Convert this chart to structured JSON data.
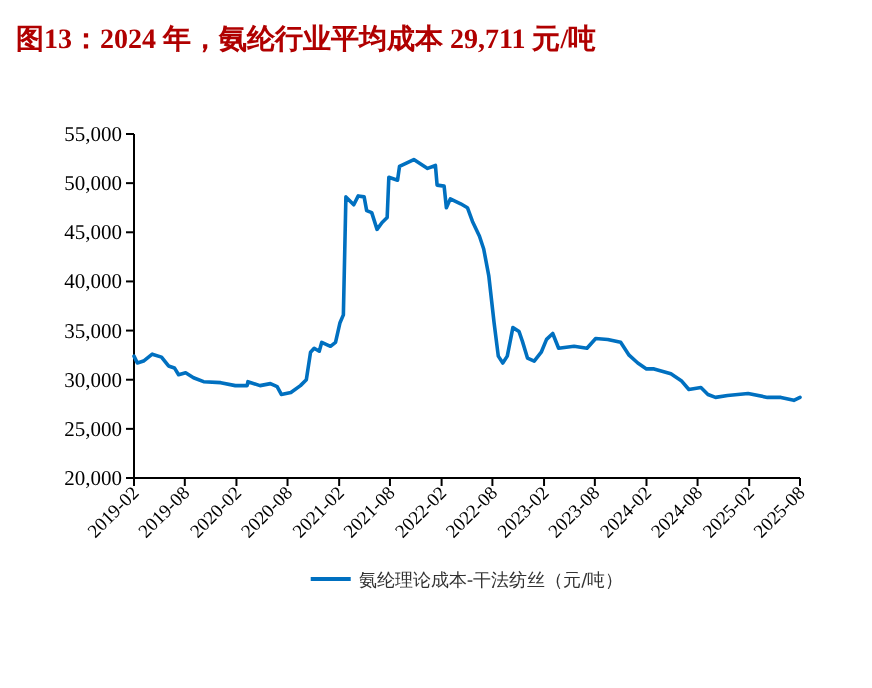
{
  "chart_data": {
    "type": "line",
    "title": "图13：2024 年，氨纶行业平均成本 29,711 元/吨",
    "xlim": [
      "2019-02-01",
      "2025-08-01"
    ],
    "xticks": [
      "2019-02",
      "2019-08",
      "2020-02",
      "2020-08",
      "2021-02",
      "2021-08",
      "2022-02",
      "2022-08",
      "2023-02",
      "2023-08",
      "2024-02",
      "2024-08",
      "2025-02",
      "2025-08"
    ],
    "ylim": [
      20000,
      55000
    ],
    "yticks": [
      {
        "value": 20000,
        "label": "20,000"
      },
      {
        "value": 25000,
        "label": "25,000"
      },
      {
        "value": 30000,
        "label": "30,000"
      },
      {
        "value": 35000,
        "label": "35,000"
      },
      {
        "value": 40000,
        "label": "40,000"
      },
      {
        "value": 45000,
        "label": "45,000"
      },
      {
        "value": 50000,
        "label": "50,000"
      },
      {
        "value": 55000,
        "label": "55,000"
      }
    ],
    "grid": false,
    "legend": "bottom",
    "marker": "none",
    "line_style": "solid",
    "series": [
      {
        "name": "氨纶理论成本-干法纺丝（元/吨）",
        "color": "#0070c0",
        "x": [
          "2019-02-01",
          "2019-02-13",
          "2019-03-07",
          "2019-04-07",
          "2019-05-10",
          "2019-06-04",
          "2019-06-25",
          "2019-07-10",
          "2019-08-04",
          "2019-09-01",
          "2019-10-07",
          "2019-12-07",
          "2020-01-28",
          "2020-03-10",
          "2020-03-13",
          "2020-04-25",
          "2020-06-01",
          "2020-06-25",
          "2020-07-10",
          "2020-08-13",
          "2020-09-16",
          "2020-10-07",
          "2020-10-22",
          "2020-11-04",
          "2020-11-22",
          "2020-12-01",
          "2021-01-01",
          "2021-01-19",
          "2021-02-04",
          "2021-02-16",
          "2021-02-25",
          "2021-03-25",
          "2021-04-10",
          "2021-05-01",
          "2021-05-10",
          "2021-05-28",
          "2021-06-16",
          "2021-07-04",
          "2021-07-22",
          "2021-07-28",
          "2021-08-28",
          "2021-09-04",
          "2021-10-25",
          "2021-12-13",
          "2022-01-10",
          "2022-01-16",
          "2022-02-10",
          "2022-02-18",
          "2022-03-04",
          "2022-04-10",
          "2022-05-04",
          "2022-05-22",
          "2022-06-16",
          "2022-07-01",
          "2022-07-19",
          "2022-08-07",
          "2022-08-22",
          "2022-09-07",
          "2022-09-23",
          "2022-10-13",
          "2022-11-04",
          "2022-11-16",
          "2022-12-04",
          "2022-12-28",
          "2023-01-22",
          "2023-02-10",
          "2023-03-04",
          "2023-03-25",
          "2023-05-19",
          "2023-07-04",
          "2023-08-04",
          "2023-09-16",
          "2023-11-01",
          "2023-12-01",
          "2024-01-01",
          "2024-02-01",
          "2024-02-28",
          "2024-04-28",
          "2024-06-04",
          "2024-07-01",
          "2024-08-13",
          "2024-09-07",
          "2024-10-04",
          "2024-11-16",
          "2025-01-28",
          "2025-04-07",
          "2025-05-25",
          "2025-07-10",
          "2025-08-01"
        ],
        "values": [
          32400,
          31700,
          31900,
          32600,
          32300,
          31400,
          31200,
          30500,
          30700,
          30200,
          29800,
          29700,
          29400,
          29400,
          29800,
          29400,
          29600,
          29300,
          28500,
          28700,
          29400,
          30000,
          32800,
          33200,
          32900,
          33800,
          33400,
          33800,
          35800,
          36600,
          48600,
          47800,
          48700,
          48600,
          47200,
          47000,
          45300,
          46000,
          46500,
          50600,
          50300,
          51700,
          52400,
          51500,
          51800,
          49800,
          49700,
          47500,
          48400,
          47900,
          47500,
          46100,
          44600,
          43300,
          40600,
          35800,
          32400,
          31700,
          32400,
          35300,
          34900,
          33900,
          32200,
          31900,
          32800,
          34100,
          34700,
          33200,
          33400,
          33200,
          34200,
          34100,
          33800,
          32500,
          31700,
          31100,
          31100,
          30600,
          29900,
          29000,
          29200,
          28500,
          28200,
          28400,
          28600,
          28200,
          28200,
          27900,
          28200
        ]
      }
    ]
  }
}
